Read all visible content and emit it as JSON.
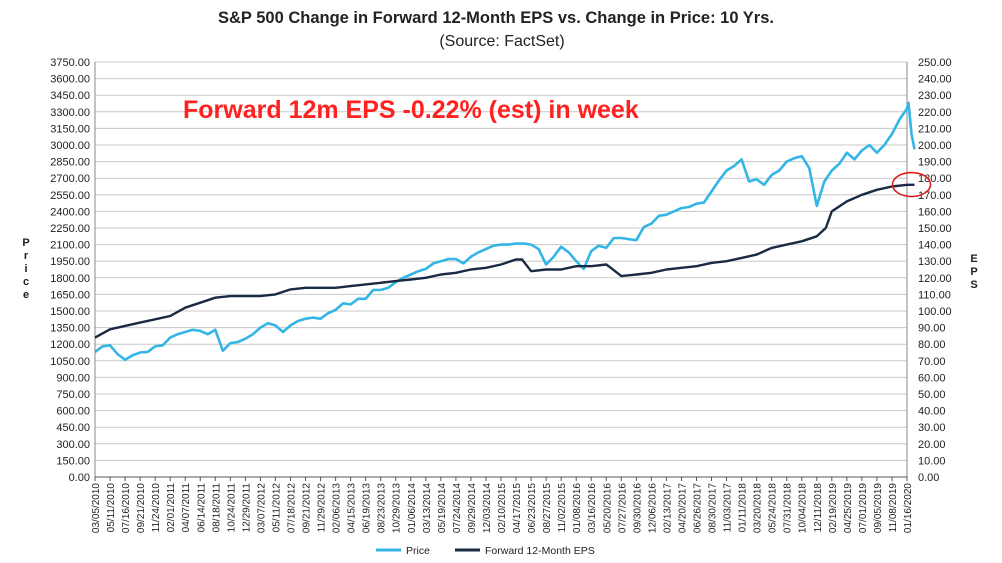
{
  "chart_data": {
    "type": "line",
    "title": "S&P 500 Change in Forward 12-Month EPS vs. Change in Price: 10 Yrs.",
    "subtitle": "(Source: FactSet)",
    "annotation": "Forward 12m EPS -0.22% (est) in week",
    "ylabel_left": "Price",
    "ylabel_right": "EPS",
    "ylim_left": [
      0,
      3750
    ],
    "ylim_right": [
      0,
      250
    ],
    "left_ticks": [
      "3750.00",
      "3600.00",
      "3450.00",
      "3300.00",
      "3150.00",
      "3000.00",
      "2850.00",
      "2700.00",
      "2550.00",
      "2400.00",
      "2250.00",
      "2100.00",
      "1950.00",
      "1800.00",
      "1650.00",
      "1500.00",
      "1350.00",
      "1200.00",
      "1050.00",
      "900.00",
      "750.00",
      "600.00",
      "450.00",
      "300.00",
      "150.00",
      "0.00"
    ],
    "right_ticks": [
      "250.00",
      "240.00",
      "230.00",
      "220.00",
      "210.00",
      "200.00",
      "190.00",
      "180.00",
      "170.00",
      "160.00",
      "150.00",
      "140.00",
      "130.00",
      "120.00",
      "110.00",
      "100.00",
      "90.00",
      "80.00",
      "70.00",
      "60.00",
      "50.00",
      "40.00",
      "30.00",
      "20.00",
      "10.00",
      "0.00"
    ],
    "x_ticks": [
      "03/05/2010",
      "05/11/2010",
      "07/16/2010",
      "09/21/2010",
      "11/24/2010",
      "02/01/2011",
      "04/07/2011",
      "06/14/2011",
      "08/18/2011",
      "10/24/2011",
      "12/29/2011",
      "03/07/2012",
      "05/11/2012",
      "07/18/2012",
      "09/21/2012",
      "11/29/2012",
      "02/06/2013",
      "04/15/2013",
      "06/19/2013",
      "08/23/2013",
      "10/29/2013",
      "01/06/2014",
      "03/13/2014",
      "05/19/2014",
      "07/24/2014",
      "09/29/2014",
      "12/03/2014",
      "02/10/2015",
      "04/17/2015",
      "06/23/2015",
      "08/27/2015",
      "11/02/2015",
      "01/08/2016",
      "03/16/2016",
      "05/20/2016",
      "07/27/2016",
      "09/30/2016",
      "12/06/2016",
      "02/13/2017",
      "04/20/2017",
      "06/26/2017",
      "08/30/2017",
      "11/03/2017",
      "01/11/2018",
      "03/20/2018",
      "05/24/2018",
      "07/31/2018",
      "10/04/2018",
      "12/11/2018",
      "02/19/2019",
      "04/25/2019",
      "07/01/2019",
      "09/05/2019",
      "11/08/2019",
      "01/16/2020"
    ],
    "series": [
      {
        "name": "Price",
        "axis": "left",
        "color": "#33b5e5",
        "points": [
          [
            0,
            1130
          ],
          [
            0.5,
            1180
          ],
          [
            1,
            1190
          ],
          [
            1.5,
            1110
          ],
          [
            2,
            1060
          ],
          [
            2.5,
            1100
          ],
          [
            3,
            1125
          ],
          [
            3.5,
            1130
          ],
          [
            4,
            1180
          ],
          [
            4.5,
            1190
          ],
          [
            5,
            1260
          ],
          [
            5.5,
            1290
          ],
          [
            6,
            1310
          ],
          [
            6.5,
            1330
          ],
          [
            7,
            1320
          ],
          [
            7.5,
            1290
          ],
          [
            8,
            1330
          ],
          [
            8.5,
            1140
          ],
          [
            9,
            1210
          ],
          [
            9.5,
            1220
          ],
          [
            10,
            1250
          ],
          [
            10.5,
            1290
          ],
          [
            11,
            1350
          ],
          [
            11.5,
            1390
          ],
          [
            12,
            1370
          ],
          [
            12.5,
            1310
          ],
          [
            13,
            1370
          ],
          [
            13.5,
            1410
          ],
          [
            14,
            1430
          ],
          [
            14.5,
            1440
          ],
          [
            15,
            1430
          ],
          [
            15.5,
            1480
          ],
          [
            16,
            1510
          ],
          [
            16.5,
            1570
          ],
          [
            17,
            1560
          ],
          [
            17.5,
            1610
          ],
          [
            18,
            1610
          ],
          [
            18.5,
            1690
          ],
          [
            19,
            1690
          ],
          [
            19.5,
            1710
          ],
          [
            20,
            1760
          ],
          [
            20.5,
            1800
          ],
          [
            21,
            1830
          ],
          [
            21.5,
            1860
          ],
          [
            22,
            1880
          ],
          [
            22.5,
            1930
          ],
          [
            23,
            1950
          ],
          [
            23.5,
            1970
          ],
          [
            24,
            1970
          ],
          [
            24.5,
            1930
          ],
          [
            25,
            1990
          ],
          [
            25.5,
            2030
          ],
          [
            26,
            2060
          ],
          [
            26.5,
            2090
          ],
          [
            27,
            2100
          ],
          [
            27.5,
            2100
          ],
          [
            28,
            2110
          ],
          [
            28.5,
            2110
          ],
          [
            29,
            2100
          ],
          [
            29.5,
            2060
          ],
          [
            30,
            1920
          ],
          [
            30.5,
            1990
          ],
          [
            31,
            2080
          ],
          [
            31.5,
            2030
          ],
          [
            32,
            1950
          ],
          [
            32.5,
            1880
          ],
          [
            33,
            2040
          ],
          [
            33.5,
            2090
          ],
          [
            34,
            2070
          ],
          [
            34.5,
            2160
          ],
          [
            35,
            2160
          ],
          [
            35.5,
            2150
          ],
          [
            36,
            2140
          ],
          [
            36.5,
            2260
          ],
          [
            37,
            2290
          ],
          [
            37.5,
            2360
          ],
          [
            38,
            2370
          ],
          [
            38.5,
            2400
          ],
          [
            39,
            2430
          ],
          [
            39.5,
            2440
          ],
          [
            40,
            2470
          ],
          [
            40.5,
            2480
          ],
          [
            41,
            2580
          ],
          [
            41.5,
            2680
          ],
          [
            42,
            2770
          ],
          [
            42.5,
            2810
          ],
          [
            43,
            2870
          ],
          [
            43.5,
            2670
          ],
          [
            44,
            2690
          ],
          [
            44.5,
            2640
          ],
          [
            45,
            2730
          ],
          [
            45.5,
            2770
          ],
          [
            46,
            2850
          ],
          [
            46.5,
            2880
          ],
          [
            47,
            2900
          ],
          [
            47.5,
            2790
          ],
          [
            48,
            2450
          ],
          [
            48.5,
            2670
          ],
          [
            49,
            2770
          ],
          [
            49.5,
            2830
          ],
          [
            50,
            2930
          ],
          [
            50.5,
            2870
          ],
          [
            51,
            2950
          ],
          [
            51.5,
            3000
          ],
          [
            52,
            2930
          ],
          [
            52.5,
            3000
          ],
          [
            53,
            3100
          ],
          [
            53.5,
            3230
          ],
          [
            54,
            3330
          ],
          [
            54.1,
            3380
          ],
          [
            54.3,
            3100
          ],
          [
            54.5,
            2960
          ]
        ]
      },
      {
        "name": "Forward 12-Month EPS",
        "axis": "right",
        "color": "#1a2a44",
        "points": [
          [
            0,
            84
          ],
          [
            1,
            89
          ],
          [
            2,
            91
          ],
          [
            3,
            93
          ],
          [
            4,
            95
          ],
          [
            5,
            97
          ],
          [
            6,
            102
          ],
          [
            7,
            105
          ],
          [
            8,
            108
          ],
          [
            9,
            109
          ],
          [
            10,
            109
          ],
          [
            11,
            109
          ],
          [
            12,
            110
          ],
          [
            13,
            113
          ],
          [
            14,
            114
          ],
          [
            15,
            114
          ],
          [
            16,
            114
          ],
          [
            17,
            115
          ],
          [
            18,
            116
          ],
          [
            19,
            117
          ],
          [
            20,
            118
          ],
          [
            21,
            119
          ],
          [
            22,
            120
          ],
          [
            23,
            122
          ],
          [
            24,
            123
          ],
          [
            25,
            125
          ],
          [
            26,
            126
          ],
          [
            27,
            128
          ],
          [
            28,
            131
          ],
          [
            28.4,
            131
          ],
          [
            29,
            124
          ],
          [
            30,
            125
          ],
          [
            31,
            125
          ],
          [
            32,
            127
          ],
          [
            33,
            127
          ],
          [
            34,
            128
          ],
          [
            34.3,
            126
          ],
          [
            35,
            121
          ],
          [
            36,
            122
          ],
          [
            37,
            123
          ],
          [
            38,
            125
          ],
          [
            39,
            126
          ],
          [
            40,
            127
          ],
          [
            41,
            129
          ],
          [
            42,
            130
          ],
          [
            43,
            132
          ],
          [
            44,
            134
          ],
          [
            45,
            138
          ],
          [
            46,
            140
          ],
          [
            47,
            142
          ],
          [
            48,
            145
          ],
          [
            48.6,
            150
          ],
          [
            49,
            160
          ],
          [
            50,
            166
          ],
          [
            51,
            170
          ],
          [
            52,
            173
          ],
          [
            53,
            175
          ],
          [
            54,
            176
          ],
          [
            54.5,
            176
          ]
        ]
      }
    ],
    "legend": [
      {
        "label": "Price",
        "color": "#33b5e5"
      },
      {
        "label": "Forward 12-Month EPS",
        "color": "#1a2a44"
      }
    ],
    "legend_position": "bottom-center",
    "highlight": {
      "shape": "ellipse",
      "color": "#e02020",
      "x_index": 54.3,
      "eps_value": 178
    }
  }
}
